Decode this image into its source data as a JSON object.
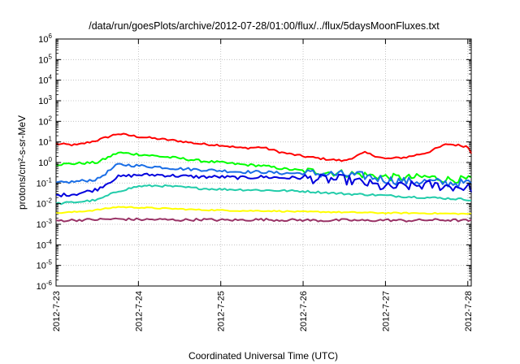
{
  "chart_data": {
    "type": "line",
    "title": "/data/run/goesPlots/archive/2012-07-28/01:00/flux/../flux/5daysMoonFluxes.txt",
    "xlabel": "Coordinated Universal Time (UTC)",
    "ylabel": "protons/cm²-s-sr-MeV",
    "y_scale": "log",
    "ylim": [
      1e-06,
      1000000.0
    ],
    "y_ticks": [
      {
        "value": 1e-06,
        "base": "10",
        "exp": "-6"
      },
      {
        "value": 1e-05,
        "base": "10",
        "exp": "-5"
      },
      {
        "value": 0.0001,
        "base": "10",
        "exp": "-4"
      },
      {
        "value": 0.001,
        "base": "10",
        "exp": "-3"
      },
      {
        "value": 0.01,
        "base": "10",
        "exp": "-2"
      },
      {
        "value": 0.1,
        "base": "10",
        "exp": "-1"
      },
      {
        "value": 1,
        "base": "10",
        "exp": "0"
      },
      {
        "value": 10.0,
        "base": "10",
        "exp": "1"
      },
      {
        "value": 100.0,
        "base": "10",
        "exp": "2"
      },
      {
        "value": 1000.0,
        "base": "10",
        "exp": "3"
      },
      {
        "value": 10000.0,
        "base": "10",
        "exp": "4"
      },
      {
        "value": 100000.0,
        "base": "10",
        "exp": "5"
      },
      {
        "value": 1000000.0,
        "base": "10",
        "exp": "6"
      }
    ],
    "xlim": [
      "2012-07-23",
      "2012-07-28 01:00"
    ],
    "x_tick_labels": [
      "2012-7-23",
      "2012-7-24",
      "2012-7-25",
      "2012-7-26",
      "2012-7-27",
      "2012-7-28"
    ],
    "grid": true,
    "series": [
      {
        "color": "#ff0000",
        "x": [
          "2012-07-23 00:00",
          "2012-07-23 06:00",
          "2012-07-23 12:00",
          "2012-07-23 18:00",
          "2012-07-24 00:00",
          "2012-07-24 06:00",
          "2012-07-24 12:00",
          "2012-07-24 18:00",
          "2012-07-25 00:00",
          "2012-07-25 06:00",
          "2012-07-25 12:00",
          "2012-07-25 18:00",
          "2012-07-26 00:00",
          "2012-07-26 06:00",
          "2012-07-26 12:00",
          "2012-07-26 18:00",
          "2012-07-27 00:00",
          "2012-07-27 06:00",
          "2012-07-27 12:00",
          "2012-07-27 18:00",
          "2012-07-28 00:00",
          "2012-07-28 01:00"
        ],
        "y": [
          8,
          7,
          12,
          25,
          18,
          14,
          11,
          8,
          7,
          5,
          5.5,
          3,
          2,
          1.5,
          1.2,
          3,
          1.5,
          1.8,
          3,
          8,
          6,
          3
        ]
      },
      {
        "color": "#00ff00",
        "x": [
          "2012-07-23 00:00",
          "2012-07-23 06:00",
          "2012-07-23 12:00",
          "2012-07-23 18:00",
          "2012-07-24 00:00",
          "2012-07-24 06:00",
          "2012-07-24 12:00",
          "2012-07-24 18:00",
          "2012-07-25 00:00",
          "2012-07-25 06:00",
          "2012-07-25 12:00",
          "2012-07-25 18:00",
          "2012-07-26 00:00",
          "2012-07-26 06:00",
          "2012-07-26 12:00",
          "2012-07-26 18:00",
          "2012-07-27 00:00",
          "2012-07-27 06:00",
          "2012-07-27 12:00",
          "2012-07-27 18:00",
          "2012-07-28 00:00",
          "2012-07-28 01:00"
        ],
        "y": [
          0.8,
          0.9,
          1.0,
          3.0,
          2.5,
          2.0,
          1.6,
          1.2,
          1.0,
          0.8,
          0.7,
          0.5,
          0.4,
          0.35,
          0.3,
          0.25,
          0.2,
          0.18,
          0.2,
          0.15,
          0.15,
          0.15
        ]
      },
      {
        "color": "#1a6ee6",
        "x": [
          "2012-07-23 00:00",
          "2012-07-23 06:00",
          "2012-07-23 12:00",
          "2012-07-23 18:00",
          "2012-07-24 00:00",
          "2012-07-24 06:00",
          "2012-07-24 12:00",
          "2012-07-24 18:00",
          "2012-07-25 00:00",
          "2012-07-25 06:00",
          "2012-07-25 12:00",
          "2012-07-25 18:00",
          "2012-07-26 00:00",
          "2012-07-26 06:00",
          "2012-07-26 12:00",
          "2012-07-26 18:00",
          "2012-07-27 00:00",
          "2012-07-27 06:00",
          "2012-07-27 12:00",
          "2012-07-27 18:00",
          "2012-07-28 00:00",
          "2012-07-28 01:00"
        ],
        "y": [
          0.1,
          0.12,
          0.15,
          0.8,
          0.7,
          0.6,
          0.5,
          0.45,
          0.4,
          0.35,
          0.35,
          0.3,
          0.3,
          0.28,
          0.25,
          0.22,
          0.15,
          0.12,
          0.12,
          0.1,
          0.1,
          0.1
        ]
      },
      {
        "color": "#0000dd",
        "x": [
          "2012-07-23 00:00",
          "2012-07-23 06:00",
          "2012-07-23 12:00",
          "2012-07-23 18:00",
          "2012-07-24 00:00",
          "2012-07-24 06:00",
          "2012-07-24 12:00",
          "2012-07-24 18:00",
          "2012-07-25 00:00",
          "2012-07-25 06:00",
          "2012-07-25 12:00",
          "2012-07-25 18:00",
          "2012-07-26 00:00",
          "2012-07-26 06:00",
          "2012-07-26 12:00",
          "2012-07-26 18:00",
          "2012-07-27 00:00",
          "2012-07-27 06:00",
          "2012-07-27 12:00",
          "2012-07-27 18:00",
          "2012-07-28 00:00",
          "2012-07-28 01:00"
        ],
        "y": [
          0.025,
          0.03,
          0.05,
          0.2,
          0.25,
          0.25,
          0.22,
          0.2,
          0.2,
          0.18,
          0.2,
          0.18,
          0.18,
          0.15,
          0.15,
          0.1,
          0.06,
          0.07,
          0.08,
          0.07,
          0.06,
          0.06
        ]
      },
      {
        "color": "#22ccaa",
        "x": [
          "2012-07-23 00:00",
          "2012-07-23 06:00",
          "2012-07-23 12:00",
          "2012-07-23 18:00",
          "2012-07-24 00:00",
          "2012-07-24 06:00",
          "2012-07-24 12:00",
          "2012-07-24 18:00",
          "2012-07-25 00:00",
          "2012-07-25 06:00",
          "2012-07-25 12:00",
          "2012-07-25 18:00",
          "2012-07-26 00:00",
          "2012-07-26 06:00",
          "2012-07-26 12:00",
          "2012-07-26 18:00",
          "2012-07-27 00:00",
          "2012-07-27 06:00",
          "2012-07-27 12:00",
          "2012-07-27 18:00",
          "2012-07-28 00:00",
          "2012-07-28 01:00"
        ],
        "y": [
          0.01,
          0.012,
          0.015,
          0.04,
          0.07,
          0.075,
          0.065,
          0.055,
          0.05,
          0.048,
          0.045,
          0.043,
          0.04,
          0.035,
          0.03,
          0.028,
          0.025,
          0.022,
          0.02,
          0.018,
          0.016,
          0.015
        ]
      },
      {
        "color": "#ffff00",
        "x": [
          "2012-07-23 00:00",
          "2012-07-23 06:00",
          "2012-07-23 12:00",
          "2012-07-23 18:00",
          "2012-07-24 00:00",
          "2012-07-24 06:00",
          "2012-07-24 12:00",
          "2012-07-24 18:00",
          "2012-07-25 00:00",
          "2012-07-25 06:00",
          "2012-07-25 12:00",
          "2012-07-25 18:00",
          "2012-07-26 00:00",
          "2012-07-26 06:00",
          "2012-07-26 12:00",
          "2012-07-26 18:00",
          "2012-07-27 00:00",
          "2012-07-27 06:00",
          "2012-07-27 12:00",
          "2012-07-27 18:00",
          "2012-07-28 00:00",
          "2012-07-28 01:00"
        ],
        "y": [
          0.0035,
          0.004,
          0.005,
          0.007,
          0.0065,
          0.006,
          0.0055,
          0.005,
          0.0048,
          0.0045,
          0.0045,
          0.0043,
          0.004,
          0.004,
          0.0038,
          0.0037,
          0.0035,
          0.0035,
          0.0034,
          0.0033,
          0.0032,
          0.0032
        ]
      },
      {
        "color": "#993366",
        "x": [
          "2012-07-23 00:00",
          "2012-07-23 06:00",
          "2012-07-23 12:00",
          "2012-07-23 18:00",
          "2012-07-24 00:00",
          "2012-07-24 06:00",
          "2012-07-24 12:00",
          "2012-07-24 18:00",
          "2012-07-25 00:00",
          "2012-07-25 06:00",
          "2012-07-25 12:00",
          "2012-07-25 18:00",
          "2012-07-26 00:00",
          "2012-07-26 06:00",
          "2012-07-26 12:00",
          "2012-07-26 18:00",
          "2012-07-27 00:00",
          "2012-07-27 06:00",
          "2012-07-27 12:00",
          "2012-07-27 18:00",
          "2012-07-28 00:00",
          "2012-07-28 01:00"
        ],
        "y": [
          0.0015,
          0.0016,
          0.0017,
          0.0018,
          0.0017,
          0.0017,
          0.0016,
          0.0017,
          0.0016,
          0.0016,
          0.0017,
          0.0016,
          0.0016,
          0.0015,
          0.0016,
          0.0015,
          0.0016,
          0.0015,
          0.0016,
          0.0016,
          0.0015,
          0.0015
        ]
      }
    ]
  }
}
